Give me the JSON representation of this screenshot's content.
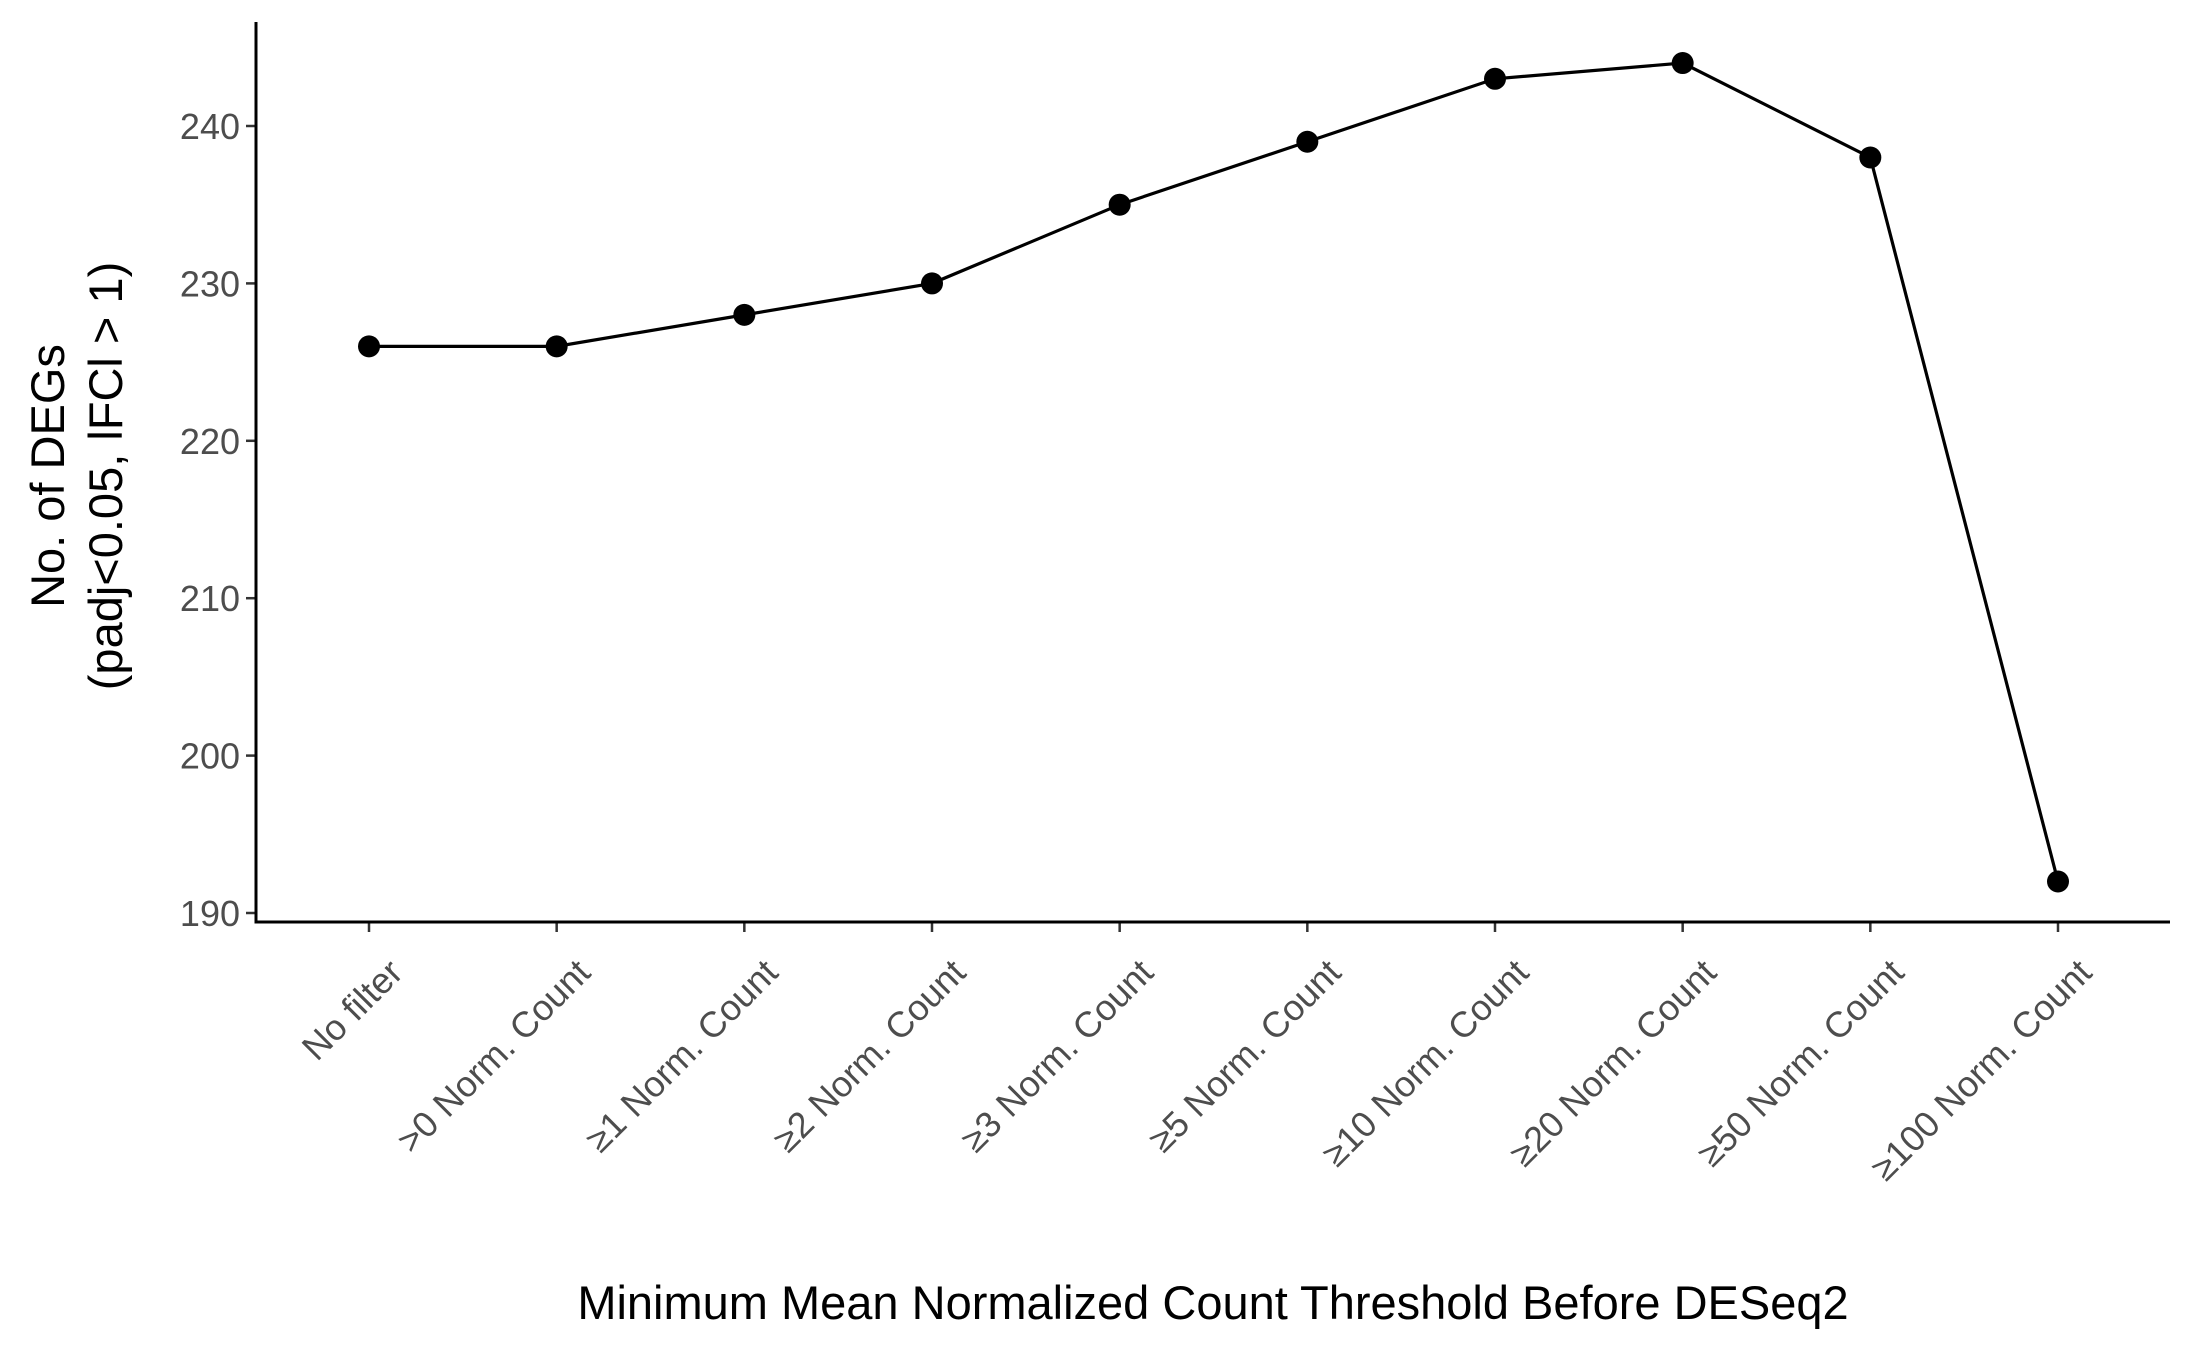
{
  "chart_data": {
    "type": "line",
    "title": "",
    "xlabel": "Minimum Mean Normalized Count Threshold Before DESeq2",
    "ylabel_lines": [
      "No. of DEGs",
      "(padj<0.05, lFCl > 1)"
    ],
    "categories": [
      "No filter",
      ">0 Norm. Count",
      "≥1 Norm. Count",
      "≥2 Norm. Count",
      "≥3 Norm. Count",
      "≥5 Norm. Count",
      "≥10 Norm. Count",
      "≥20 Norm. Count",
      "≥50 Norm. Count",
      "≥100 Norm. Count"
    ],
    "series": [
      {
        "values": [
          226,
          226,
          228,
          230,
          235,
          239,
          243,
          244,
          238,
          192
        ]
      }
    ],
    "y_ticks": [
      190,
      200,
      210,
      220,
      230,
      240
    ],
    "ylim": [
      189.5,
      246.5
    ],
    "grid": false,
    "legend": "none",
    "colors": {
      "line": "#000000",
      "point": "#000000",
      "tick_text": "#4d4d4d"
    }
  }
}
